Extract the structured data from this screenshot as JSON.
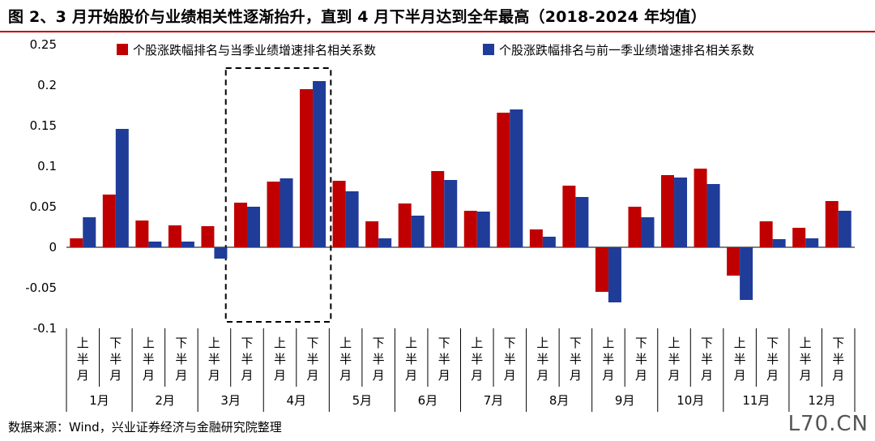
{
  "title": "图 2、3 月开始股价与业绩相关性逐渐抬升，直到 4 月下半月达到全年最高（2018-2024 年均值）",
  "source": "数据来源：Wind，兴业证券经济与金融研究院整理",
  "watermark": "L70.CN",
  "colors": {
    "series1": "#c00000",
    "series2": "#1f3c99",
    "rule": "#c00000"
  },
  "chart_data": {
    "type": "bar",
    "ylim": [
      -0.1,
      0.25
    ],
    "yticks": [
      "0.25",
      "0.2",
      "0.15",
      "0.1",
      "0.05",
      "0",
      "-0.05",
      "-0.1"
    ],
    "ytick_values": [
      0.25,
      0.2,
      0.15,
      0.1,
      0.05,
      0,
      -0.05,
      -0.1
    ],
    "halves": [
      "上半月",
      "下半月"
    ],
    "months": [
      "1月",
      "2月",
      "3月",
      "4月",
      "5月",
      "6月",
      "7月",
      "8月",
      "9月",
      "10月",
      "11月",
      "12月"
    ],
    "series": [
      {
        "name": "个股涨跌幅排名与当季业绩增速排名相关系数",
        "values": [
          0.011,
          0.065,
          0.033,
          0.027,
          0.026,
          0.055,
          0.081,
          0.195,
          0.082,
          0.032,
          0.054,
          0.094,
          0.045,
          0.166,
          0.022,
          0.076,
          -0.055,
          0.05,
          0.089,
          0.097,
          -0.035,
          0.032,
          0.024,
          0.057
        ]
      },
      {
        "name": "个股涨跌幅排名与前一季业绩增速排名相关系数",
        "values": [
          0.037,
          0.146,
          0.007,
          0.007,
          -0.014,
          0.05,
          0.085,
          0.205,
          0.069,
          0.011,
          0.039,
          0.083,
          0.044,
          0.17,
          0.013,
          0.062,
          -0.068,
          0.037,
          0.086,
          0.078,
          -0.065,
          0.01,
          0.011,
          0.045
        ]
      }
    ],
    "highlight": {
      "label": "4月",
      "style": "dashed-box",
      "categories": [
        "3月 下半月",
        "4月 上半月",
        "4月 下半月"
      ]
    }
  }
}
